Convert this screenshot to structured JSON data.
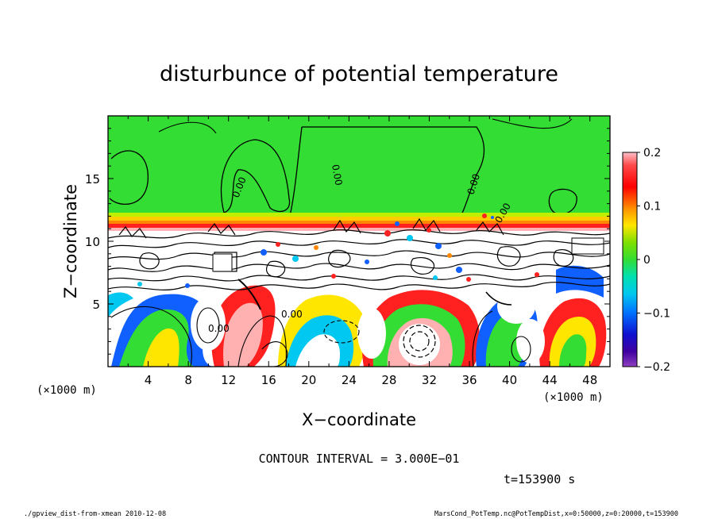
{
  "chart_data": {
    "type": "heatmap",
    "title": "disturbunce of potential temperature",
    "xlabel": "X−coordinate",
    "ylabel": "Z−coordinate",
    "x_unit": "(×1000 m)",
    "y_unit": "(×1000 m)",
    "xlim": [
      0,
      50
    ],
    "ylim": [
      0,
      20
    ],
    "x_ticks": [
      4,
      8,
      12,
      16,
      20,
      24,
      28,
      32,
      36,
      40,
      44,
      48
    ],
    "y_ticks": [
      5,
      10,
      15
    ],
    "colorbar": {
      "range": [
        -0.2,
        0.2
      ],
      "ticks": [
        "0.2",
        "0.1",
        "0",
        "−0.1",
        "−0.2"
      ],
      "tick_values": [
        0.2,
        0.1,
        0,
        -0.1,
        -0.2
      ]
    },
    "contour_interval_label": "CONTOUR INTERVAL = 3.000E−01",
    "contour_labels": [
      "0.00",
      "0.00",
      "0.00",
      "0.00",
      "0.00",
      "0.00"
    ],
    "time_label": "t=153900 s",
    "footer_left": "./gpview_dist-from-xmean  2010-12-08",
    "footer_right": "MarsCond_PotTemp.nc@PotTempDist,x=0:50000,z=0:20000,t=153900"
  }
}
